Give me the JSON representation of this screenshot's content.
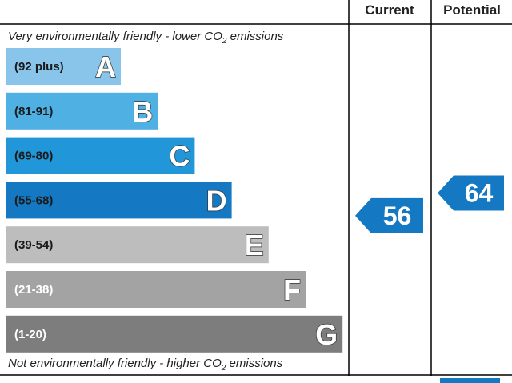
{
  "header": {
    "current_label": "Current",
    "potential_label": "Potential"
  },
  "notes": {
    "top_pre": "Very environmentally friendly - lower C",
    "top_o": "O",
    "top_sub": "2",
    "top_post": " emissions",
    "bottom_pre": "Not environmentally friendly - higher C",
    "bottom_o": "O",
    "bottom_sub": "2",
    "bottom_post": " emissions"
  },
  "chart_data": {
    "type": "bar",
    "bands": [
      {
        "range": "(92 plus)",
        "letter": "A",
        "min": 92,
        "max": 100,
        "color": "#89c5ea",
        "label_color": "#1a1a1a"
      },
      {
        "range": "(81-91)",
        "letter": "B",
        "min": 81,
        "max": 91,
        "color": "#4fb0e4",
        "label_color": "#1a1a1a"
      },
      {
        "range": "(69-80)",
        "letter": "C",
        "min": 69,
        "max": 80,
        "color": "#2196d8",
        "label_color": "#1a1a1a"
      },
      {
        "range": "(55-68)",
        "letter": "D",
        "min": 55,
        "max": 68,
        "color": "#1478c2",
        "label_color": "#1a1a1a"
      },
      {
        "range": "(39-54)",
        "letter": "E",
        "min": 39,
        "max": 54,
        "color": "#bdbdbd",
        "label_color": "#1a1a1a"
      },
      {
        "range": "(21-38)",
        "letter": "F",
        "min": 21,
        "max": 38,
        "color": "#a3a3a3",
        "label_color": "#ffffff"
      },
      {
        "range": "(1-20)",
        "letter": "G",
        "min": 1,
        "max": 20,
        "color": "#7d7d7d",
        "label_color": "#ffffff"
      }
    ],
    "current": {
      "value": 56,
      "color": "#1478c2"
    },
    "potential": {
      "value": 64,
      "color": "#1478c2"
    }
  }
}
